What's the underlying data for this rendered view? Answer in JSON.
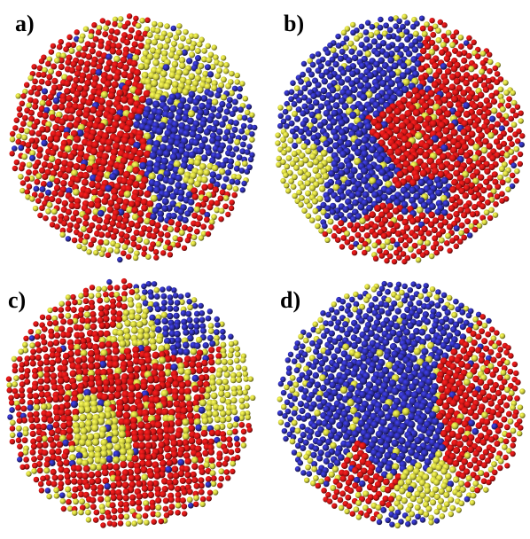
{
  "panels": [
    {
      "id": "a",
      "label": "a)"
    },
    {
      "id": "b",
      "label": "b)"
    },
    {
      "id": "c",
      "label": "c)"
    },
    {
      "id": "d",
      "label": "d)"
    }
  ],
  "colors": {
    "red": "#c81414",
    "blue": "#2a2a9a",
    "yellow": "#c8c83a",
    "background": "#ffffff"
  },
  "legend": {
    "sphere_colors": [
      "red",
      "blue",
      "yellow"
    ]
  }
}
